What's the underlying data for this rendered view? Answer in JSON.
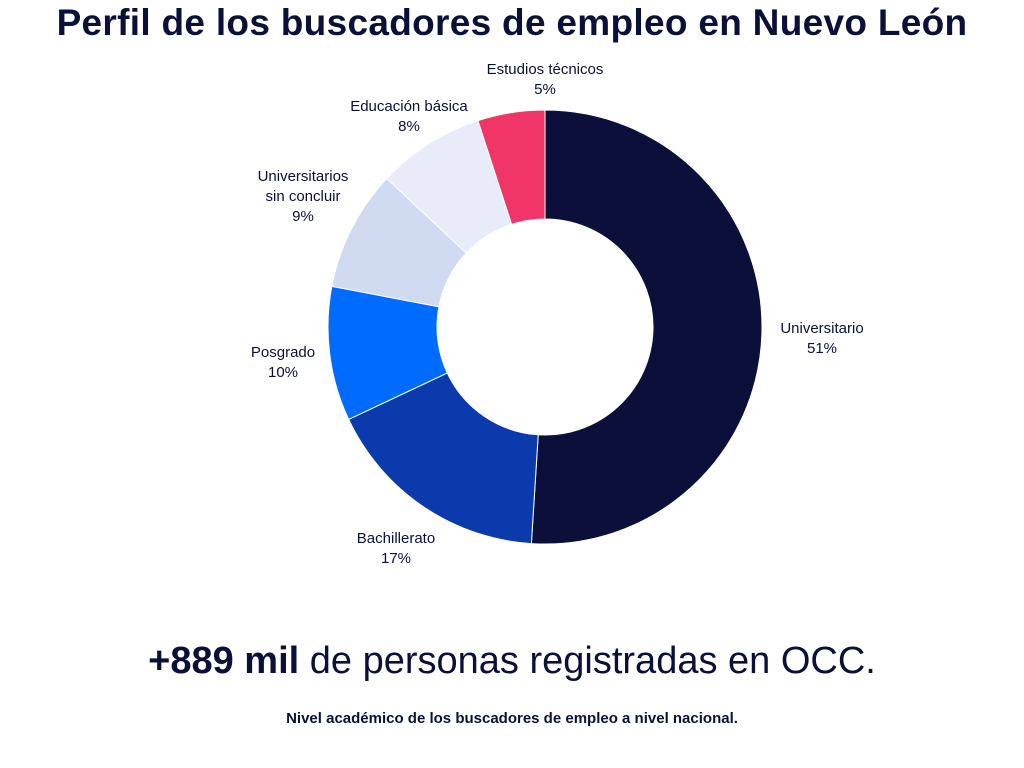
{
  "header": {
    "title": "Perfil de los buscadores de empleo en Nuevo León"
  },
  "chart_data": {
    "type": "pie",
    "variant": "donut",
    "title": "Perfil de los buscadores de empleo en Nuevo León",
    "categories": [
      "Universitario",
      "Bachillerato",
      "Posgrado",
      "Universitarios sin concluir",
      "Educación básica",
      "Estudios técnicos"
    ],
    "label_lines": [
      [
        "Universitario"
      ],
      [
        "Bachillerato"
      ],
      [
        "Posgrado"
      ],
      [
        "Universitarios",
        "sin concluir"
      ],
      [
        "Educación básica"
      ],
      [
        "Estudios técnicos"
      ]
    ],
    "values": [
      51,
      17,
      10,
      9,
      8,
      5
    ],
    "value_labels": [
      "51%",
      "17%",
      "10%",
      "9%",
      "8%",
      "5%"
    ],
    "colors": [
      "#0b0f3a",
      "#0a3aab",
      "#006cff",
      "#d0daf0",
      "#e7ecf8",
      "#f13566"
    ],
    "start": "12 o'clock",
    "direction": "clockwise"
  },
  "footer": {
    "headline_strong": "+889 mil",
    "headline_rest": " de personas registradas en OCC.",
    "note": "Nivel académico de los buscadores de empleo a nivel nacional."
  }
}
